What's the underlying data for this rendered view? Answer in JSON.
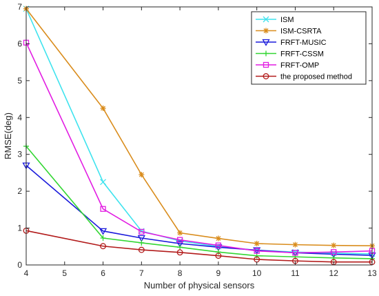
{
  "chart_data": {
    "type": "line",
    "title": "",
    "xlabel": "Number of physical sensors",
    "ylabel": "RMSE(deg)",
    "xlim": [
      4,
      13
    ],
    "ylim": [
      0,
      7
    ],
    "xticks": [
      4,
      5,
      6,
      7,
      8,
      9,
      10,
      11,
      12,
      13
    ],
    "yticks": [
      0,
      1,
      2,
      3,
      4,
      5,
      6,
      7
    ],
    "grid": false,
    "legend_position": "top-right",
    "series": [
      {
        "name": "ISM",
        "color": "#3fe3ee",
        "marker": "x",
        "x": [
          4,
          6,
          7,
          8,
          9,
          10,
          11,
          12,
          13
        ],
        "y": [
          6.95,
          2.25,
          0.92,
          0.65,
          0.5,
          0.4,
          0.35,
          0.32,
          0.3
        ]
      },
      {
        "name": "ISM-CSRTA",
        "color": "#d98c1c",
        "marker": "asterisk",
        "x": [
          4,
          6,
          7,
          8,
          9,
          10,
          11,
          12,
          13
        ],
        "y": [
          6.95,
          4.25,
          2.45,
          0.87,
          0.72,
          0.58,
          0.55,
          0.53,
          0.52
        ]
      },
      {
        "name": "FRFT-MUSIC",
        "color": "#1a1adb",
        "marker": "triangle-down",
        "x": [
          4,
          6,
          7,
          8,
          9,
          10,
          11,
          12,
          13
        ],
        "y": [
          2.7,
          0.92,
          0.73,
          0.58,
          0.48,
          0.4,
          0.33,
          0.29,
          0.26
        ]
      },
      {
        "name": "FRFT-CSSM",
        "color": "#32d632",
        "marker": "plus",
        "x": [
          4,
          6,
          7,
          8,
          9,
          10,
          11,
          12,
          13
        ],
        "y": [
          3.22,
          0.73,
          0.6,
          0.48,
          0.35,
          0.25,
          0.22,
          0.19,
          0.17
        ]
      },
      {
        "name": "FRFT-OMP",
        "color": "#e21ce2",
        "marker": "square",
        "x": [
          4,
          6,
          7,
          8,
          9,
          10,
          11,
          12,
          13
        ],
        "y": [
          6.03,
          1.52,
          0.9,
          0.68,
          0.53,
          0.38,
          0.33,
          0.35,
          0.38
        ]
      },
      {
        "name": "the proposed method",
        "color": "#b21a1a",
        "marker": "circle",
        "x": [
          4,
          6,
          7,
          8,
          9,
          10,
          11,
          12,
          13
        ],
        "y": [
          0.93,
          0.51,
          0.41,
          0.34,
          0.25,
          0.15,
          0.11,
          0.08,
          0.08
        ]
      }
    ]
  }
}
